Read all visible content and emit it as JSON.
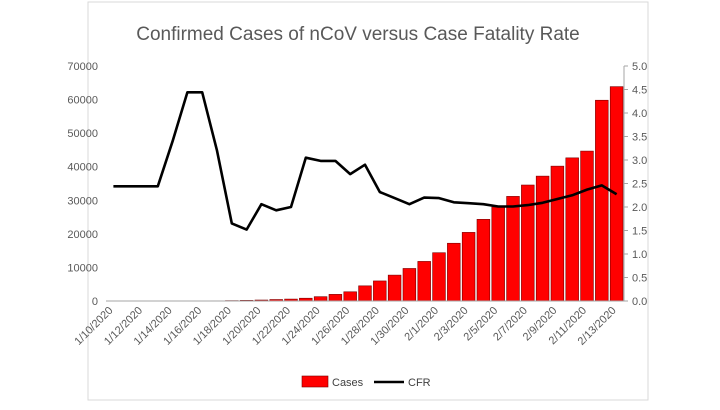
{
  "chart_data": {
    "type": "bar",
    "title": "Confirmed Cases of nCoV versus Case Fatality Rate",
    "xlabel": "",
    "ylabel": "",
    "categories": [
      "1/10/2020",
      "1/11/2020",
      "1/12/2020",
      "1/13/2020",
      "1/14/2020",
      "1/15/2020",
      "1/16/2020",
      "1/17/2020",
      "1/18/2020",
      "1/19/2020",
      "1/20/2020",
      "1/21/2020",
      "1/22/2020",
      "1/23/2020",
      "1/24/2020",
      "1/25/2020",
      "1/26/2020",
      "1/27/2020",
      "1/28/2020",
      "1/29/2020",
      "1/30/2020",
      "1/31/2020",
      "2/1/2020",
      "2/2/2020",
      "2/3/2020",
      "2/4/2020",
      "2/5/2020",
      "2/6/2020",
      "2/7/2020",
      "2/8/2020",
      "2/9/2020",
      "2/10/2020",
      "2/11/2020",
      "2/12/2020",
      "2/13/2020"
    ],
    "x_tick_labels": [
      "1/10/2020",
      "1/12/2020",
      "1/14/2020",
      "1/16/2020",
      "1/18/2020",
      "1/20/2020",
      "1/22/2020",
      "1/24/2020",
      "1/26/2020",
      "1/28/2020",
      "1/30/2020",
      "2/1/2020",
      "2/3/2020",
      "2/5/2020",
      "2/7/2020",
      "2/9/2020",
      "2/11/2020",
      "2/13/2020"
    ],
    "series": [
      {
        "name": "Cases",
        "kind": "bar",
        "axis": "left",
        "color": "#ff0000",
        "values": [
          41,
          41,
          41,
          41,
          41,
          45,
          45,
          62,
          121,
          198,
          291,
          440,
          571,
          830,
          1287,
          1975,
          2744,
          4515,
          5974,
          7711,
          9692,
          11791,
          14380,
          17205,
          20438,
          24324,
          28018,
          31161,
          34546,
          37198,
          40171,
          42638,
          44653,
          59804,
          63851
        ]
      },
      {
        "name": "CFR",
        "kind": "line",
        "axis": "right",
        "color": "#000000",
        "values": [
          2.44,
          2.44,
          2.44,
          2.44,
          3.4,
          4.44,
          4.44,
          3.2,
          1.65,
          1.52,
          2.06,
          1.93,
          2.0,
          3.05,
          2.98,
          2.98,
          2.7,
          2.9,
          2.32,
          2.19,
          2.06,
          2.2,
          2.19,
          2.1,
          2.08,
          2.06,
          2.01,
          2.01,
          2.04,
          2.09,
          2.17,
          2.25,
          2.37,
          2.46,
          2.27
        ]
      }
    ],
    "ylim": [
      0,
      70000
    ],
    "y_ticks": [
      "0",
      "10000",
      "20000",
      "30000",
      "40000",
      "50000",
      "60000",
      "70000"
    ],
    "y2lim": [
      0,
      5.0
    ],
    "y2_ticks": [
      "0.0",
      "0.5",
      "1.0",
      "1.5",
      "2.0",
      "2.5",
      "3.0",
      "3.5",
      "4.0",
      "4.5",
      "5.0"
    ],
    "grid": false,
    "legend_position": "bottom"
  }
}
